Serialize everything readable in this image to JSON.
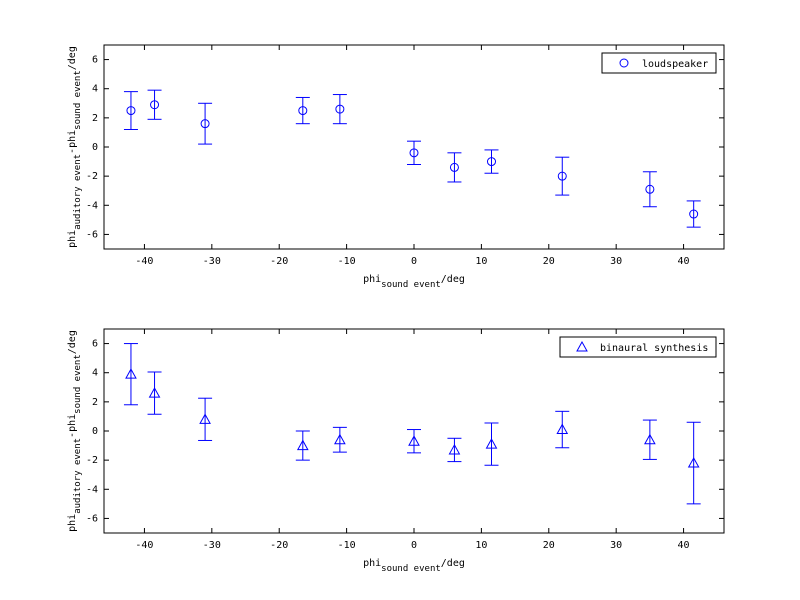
{
  "chart_data": [
    {
      "type": "errorbar",
      "x": [
        -42,
        -38.5,
        -31,
        -16.5,
        -11,
        0,
        6,
        11.5,
        22,
        35,
        41.5
      ],
      "series": [
        {
          "name": "loudspeaker",
          "color": "#0000ff",
          "marker": "circle",
          "values": [
            2.5,
            2.9,
            1.6,
            2.5,
            2.6,
            -0.4,
            -1.4,
            -1.0,
            -2.0,
            -2.9,
            -4.6
          ],
          "errors": [
            1.3,
            1.0,
            1.4,
            0.9,
            1.0,
            0.8,
            1.0,
            0.8,
            1.3,
            1.2,
            0.9
          ]
        }
      ],
      "xlabel": [
        "phi",
        "sound event",
        "/deg"
      ],
      "ylabel": [
        "phi",
        "auditory event",
        "-phi",
        "sound event",
        "/deg"
      ],
      "xlim": [
        -46,
        46
      ],
      "ylim": [
        -7,
        7
      ],
      "xticks": [
        -40,
        -30,
        -20,
        -10,
        0,
        10,
        20,
        30,
        40
      ],
      "yticks": [
        -6,
        -4,
        -2,
        0,
        2,
        4,
        6
      ],
      "legend": "upper right",
      "grid": false
    },
    {
      "type": "errorbar",
      "x": [
        -42,
        -38.5,
        -31,
        -16.5,
        -11,
        0,
        6,
        11.5,
        22,
        35,
        41.5
      ],
      "series": [
        {
          "name": "binaural synthesis",
          "color": "#0000ff",
          "marker": "triangle",
          "values": [
            3.9,
            2.6,
            0.8,
            -1.0,
            -0.6,
            -0.7,
            -1.3,
            -0.9,
            0.1,
            -0.6,
            -2.2
          ],
          "errors": [
            2.1,
            1.45,
            1.45,
            1.0,
            0.85,
            0.8,
            0.8,
            1.45,
            1.25,
            1.35,
            2.8
          ]
        }
      ],
      "xlabel": [
        "phi",
        "sound event",
        "/deg"
      ],
      "ylabel": [
        "phi",
        "auditory event",
        "-phi",
        "sound event",
        "/deg"
      ],
      "xlim": [
        -46,
        46
      ],
      "ylim": [
        -7,
        7
      ],
      "xticks": [
        -40,
        -30,
        -20,
        -10,
        0,
        10,
        20,
        30,
        40
      ],
      "yticks": [
        -6,
        -4,
        -2,
        0,
        2,
        4,
        6
      ],
      "legend": "upper right",
      "grid": false
    }
  ]
}
